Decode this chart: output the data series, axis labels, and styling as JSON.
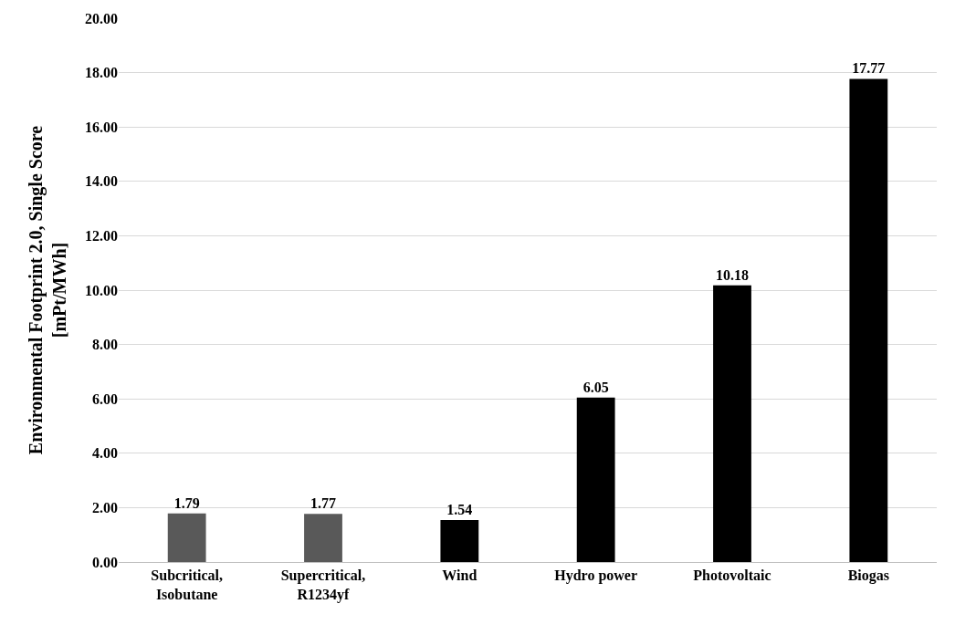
{
  "chart_data": {
    "type": "bar",
    "ylabel": "Environmental Footprint 2.0, Single Score\n[mPt/MWh]",
    "categories": [
      "Subcritical,\nIsobutane",
      "Supercritical,\nR1234yf",
      "Wind",
      "Hydro power",
      "Photovoltaic",
      "Biogas"
    ],
    "values": [
      1.79,
      1.77,
      1.54,
      6.05,
      10.18,
      17.77
    ],
    "colors": [
      "#595959",
      "#595959",
      "#000000",
      "#000000",
      "#000000",
      "#000000"
    ],
    "ylim": [
      0,
      20
    ],
    "yticks": [
      {
        "value": 0,
        "label": "0.00"
      },
      {
        "value": 2,
        "label": "2.00"
      },
      {
        "value": 4,
        "label": "4.00"
      },
      {
        "value": 6,
        "label": "6.00"
      },
      {
        "value": 8,
        "label": "8.00"
      },
      {
        "value": 10,
        "label": "10.00"
      },
      {
        "value": 12,
        "label": "12.00"
      },
      {
        "value": 14,
        "label": "14.00"
      },
      {
        "value": 16,
        "label": "16.00"
      },
      {
        "value": 18,
        "label": "18.00"
      },
      {
        "value": 20,
        "label": "20.00"
      }
    ],
    "grid": "y",
    "data_labels": true
  }
}
